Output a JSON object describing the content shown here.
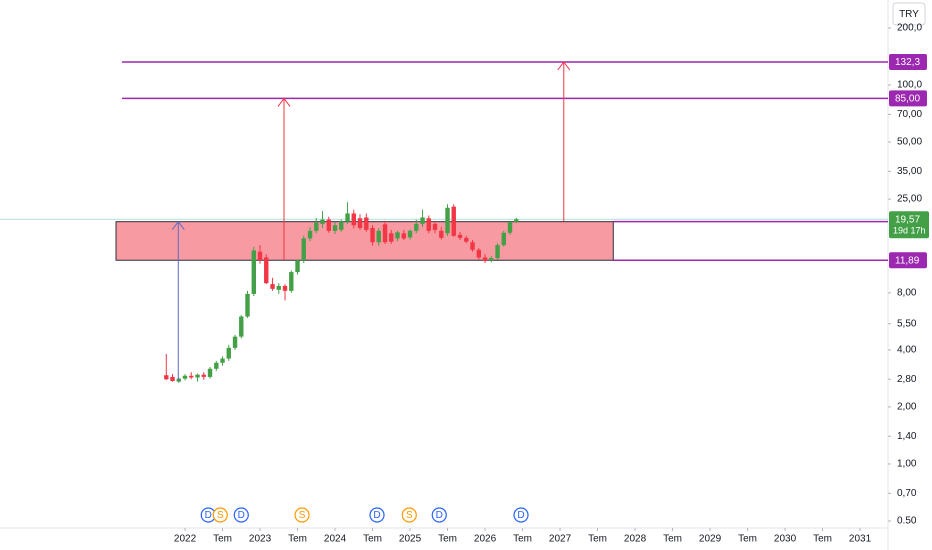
{
  "chart_data": {
    "type": "candlestick",
    "currency": "TRY",
    "log_scale": true,
    "up_color": "#43a047",
    "down_color": "#f23645",
    "x": [
      2021.75,
      2021.833,
      2021.917,
      2022.0,
      2022.083,
      2022.167,
      2022.25,
      2022.333,
      2022.417,
      2022.5,
      2022.583,
      2022.667,
      2022.75,
      2022.833,
      2022.917,
      2023.0,
      2023.083,
      2023.167,
      2023.25,
      2023.333,
      2023.417,
      2023.5,
      2023.583,
      2023.667,
      2023.75,
      2023.833,
      2023.917,
      2024.0,
      2024.083,
      2024.167,
      2024.25,
      2024.333,
      2024.417,
      2024.5,
      2024.583,
      2024.667,
      2024.75,
      2024.833,
      2024.917,
      2025.0,
      2025.083,
      2025.167,
      2025.25,
      2025.333,
      2025.417,
      2025.5,
      2025.583,
      2025.667,
      2025.75,
      2025.833,
      2025.917,
      2026.0,
      2026.083,
      2026.167,
      2026.25,
      2026.333,
      2026.417
    ],
    "open": [
      2.94,
      2.88,
      2.72,
      2.82,
      2.92,
      2.86,
      2.96,
      2.88,
      3.18,
      3.42,
      3.6,
      4.1,
      4.7,
      6.0,
      7.9,
      13.2,
      12.3,
      8.9,
      8.3,
      8.7,
      8.2,
      10.3,
      11.9,
      15.5,
      17.0,
      18.5,
      19.5,
      17.0,
      17.2,
      19.0,
      21.0,
      19.8,
      20.0,
      17.6,
      14.8,
      18.4,
      16.5,
      15.5,
      16.5,
      15.7,
      17.0,
      18.5,
      19.8,
      18.5,
      17.0,
      16.5,
      22.8,
      16.2,
      15.6,
      14.8,
      13.5,
      12.3,
      11.9,
      12.2,
      14.3,
      16.6,
      18.9
    ],
    "high": [
      3.81,
      2.98,
      2.86,
      2.98,
      3.05,
      3.0,
      3.05,
      3.25,
      3.5,
      3.7,
      4.25,
      4.8,
      6.1,
      8.2,
      14.0,
      14.3,
      12.8,
      9.6,
      9.0,
      8.9,
      10.5,
      12.0,
      16.0,
      17.8,
      19.8,
      21.6,
      20.2,
      18.8,
      19.5,
      24.1,
      22.0,
      20.8,
      21.0,
      18.2,
      17.6,
      19.2,
      17.2,
      17.0,
      17.2,
      17.3,
      19.5,
      22.0,
      20.5,
      19.2,
      17.8,
      23.5,
      23.5,
      16.8,
      16.0,
      15.2,
      13.8,
      12.8,
      12.5,
      14.6,
      17.0,
      19.2,
      19.9
    ],
    "low": [
      2.77,
      2.72,
      2.68,
      2.76,
      2.8,
      2.72,
      2.78,
      2.82,
      3.1,
      3.3,
      3.5,
      4.0,
      4.6,
      5.9,
      7.7,
      11.4,
      8.9,
      8.2,
      7.9,
      7.3,
      8.0,
      10.0,
      11.5,
      15.0,
      16.5,
      17.6,
      16.6,
      16.4,
      16.8,
      18.5,
      17.5,
      17.2,
      16.8,
      14.2,
      14.2,
      14.5,
      14.5,
      15.0,
      15.2,
      15.3,
      16.5,
      17.8,
      16.5,
      16.5,
      15.3,
      16.0,
      15.8,
      15.2,
      14.6,
      13.2,
      12.0,
      11.5,
      11.6,
      12.0,
      14.0,
      16.2,
      18.7
    ],
    "close": [
      2.8,
      2.74,
      2.82,
      2.92,
      2.86,
      2.96,
      2.88,
      3.18,
      3.42,
      3.6,
      4.1,
      4.7,
      6.0,
      7.9,
      13.4,
      11.9,
      9.0,
      8.4,
      8.7,
      8.2,
      10.3,
      11.9,
      15.5,
      17.0,
      18.8,
      19.5,
      17.0,
      18.2,
      19.0,
      21.0,
      18.2,
      17.6,
      17.2,
      14.8,
      17.0,
      14.8,
      14.9,
      16.7,
      15.5,
      17.0,
      18.5,
      20.0,
      17.0,
      17.2,
      15.6,
      22.5,
      16.0,
      15.6,
      14.9,
      13.5,
      12.3,
      11.8,
      12.2,
      14.3,
      16.6,
      18.9,
      19.57
    ],
    "xlim": [
      2019.533,
      2031.373
    ],
    "xticks": [
      {
        "value": 2022,
        "label": "2022"
      },
      {
        "value": 2022.5,
        "label": "Tem"
      },
      {
        "value": 2023,
        "label": "2023"
      },
      {
        "value": 2023.5,
        "label": "Tem"
      },
      {
        "value": 2024,
        "label": "2024"
      },
      {
        "value": 2024.5,
        "label": "Tem"
      },
      {
        "value": 2025,
        "label": "2025"
      },
      {
        "value": 2025.5,
        "label": "Tem"
      },
      {
        "value": 2026,
        "label": "2026"
      },
      {
        "value": 2026.5,
        "label": "Tem"
      },
      {
        "value": 2027,
        "label": "2027"
      },
      {
        "value": 2027.5,
        "label": "Tem"
      },
      {
        "value": 2028,
        "label": "2028"
      },
      {
        "value": 2028.5,
        "label": "Tem"
      },
      {
        "value": 2029,
        "label": "2029"
      },
      {
        "value": 2029.5,
        "label": "Tem"
      },
      {
        "value": 2030,
        "label": "2030"
      },
      {
        "value": 2030.5,
        "label": "Tem"
      },
      {
        "value": 2031,
        "label": "2031"
      }
    ],
    "ylim": [
      0.5,
      200
    ],
    "yticks": [
      {
        "value": 0.5,
        "label": "0.50"
      },
      {
        "value": 0.7,
        "label": "0,70"
      },
      {
        "value": 1,
        "label": "1,00"
      },
      {
        "value": 1.4,
        "label": "1,40"
      },
      {
        "value": 2,
        "label": "2,00"
      },
      {
        "value": 2.8,
        "label": "2,80"
      },
      {
        "value": 4,
        "label": "4,00"
      },
      {
        "value": 5.5,
        "label": "5,50"
      },
      {
        "value": 8,
        "label": "8,00"
      },
      {
        "value": 25,
        "label": "25,00"
      },
      {
        "value": 35,
        "label": "35,00"
      },
      {
        "value": 50,
        "label": "50,00"
      },
      {
        "value": 70,
        "label": "70,00"
      },
      {
        "value": 100,
        "label": "100,0"
      },
      {
        "value": 200,
        "label": "200,0"
      }
    ],
    "zone": {
      "x": [
        2021.08,
        2027.71
      ],
      "y": [
        11.89,
        19.0
      ],
      "color": "#f8959d"
    },
    "levels": [
      {
        "value": 132.3,
        "label": "132,3",
        "start": 2021.16,
        "color": "#9c27b0"
      },
      {
        "value": 85,
        "label": "85,00",
        "start": 2021.16,
        "color": "#9c27b0"
      },
      {
        "value": 19.0,
        "start": 2027.71,
        "color": "#9c27b0"
      },
      {
        "value": 11.89,
        "label": "11,89",
        "start": 2027.71,
        "color": "#9c27b0"
      }
    ],
    "last_price": {
      "value": 19.57,
      "label": "19,57",
      "countdown": "19d 17h",
      "color": "#43a047"
    },
    "arrows": [
      {
        "x": 2021.91,
        "from": 2.75,
        "to": 19.0,
        "color": "#5c6bc0"
      },
      {
        "x": 2023.32,
        "from": 11.89,
        "to": 85,
        "color": "#f23645"
      },
      {
        "x": 2027.05,
        "from": 19.0,
        "to": 132.3,
        "color": "#f23645"
      }
    ],
    "events": [
      {
        "x": 2022.31,
        "label": "D",
        "color": "#2962ff"
      },
      {
        "x": 2022.47,
        "label": "S",
        "color": "#ff9800"
      },
      {
        "x": 2022.75,
        "label": "D",
        "color": "#2962ff"
      },
      {
        "x": 2023.56,
        "label": "S",
        "color": "#ff9800"
      },
      {
        "x": 2024.56,
        "label": "D",
        "color": "#2962ff"
      },
      {
        "x": 2024.99,
        "label": "S",
        "color": "#ff9800"
      },
      {
        "x": 2025.39,
        "label": "D",
        "color": "#2962ff"
      },
      {
        "x": 2026.48,
        "label": "D",
        "color": "#2962ff"
      }
    ]
  }
}
